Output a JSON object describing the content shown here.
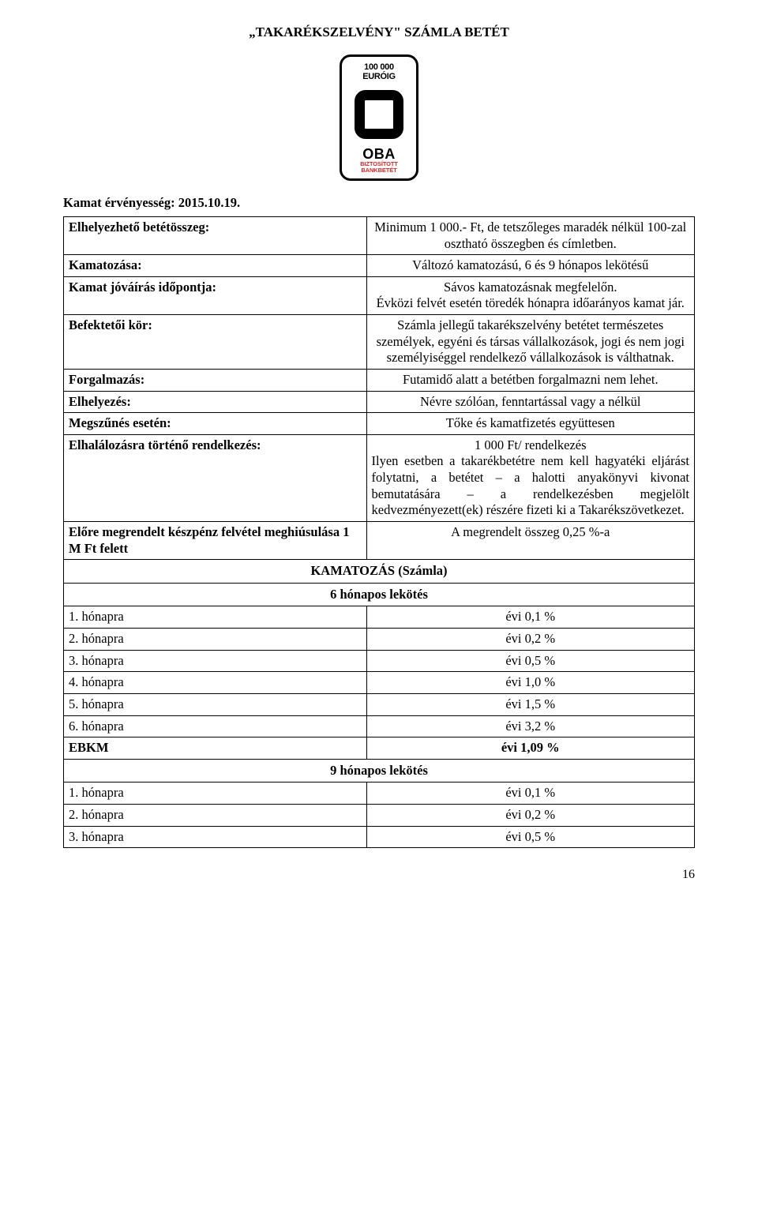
{
  "document_title": "„TAKARÉKSZELVÉNY\" SZÁMLA BETÉT",
  "logo": {
    "top_line1": "100 000",
    "top_line2": "EURÓIG",
    "brand": "OBA",
    "sub_line1": "BIZTOSÍTOTT",
    "sub_line2": "BANKBETÉT"
  },
  "validity_line": "Kamat érvényesség: 2015.10.19.",
  "info_rows": [
    {
      "label": "Elhelyezhető betétösszeg:",
      "value": "Minimum 1 000.- Ft, de tetszőleges maradék nélkül 100-zal osztható összegben és címletben.",
      "align": "center"
    },
    {
      "label": "Kamatozása:",
      "value": "Változó kamatozású, 6 és 9 hónapos lekötésű",
      "align": "center"
    },
    {
      "label": "Kamat jóváírás időpontja:",
      "value": "Sávos kamatozásnak megfelelőn.\nÉvközi felvét esetén töredék hónapra időarányos kamat jár.",
      "align": "center"
    },
    {
      "label": "Befektetői kör:",
      "value": "Számla jellegű takarékszelvény betétet természetes személyek, egyéni és társas vállalkozások, jogi és nem jogi személyiséggel rendelkező vállalkozások is válthatnak.",
      "align": "center"
    },
    {
      "label": "Forgalmazás:",
      "value": "Futamidő alatt a betétben forgalmazni nem lehet.",
      "align": "center"
    },
    {
      "label": "Elhelyezés:",
      "value": "Névre szólóan, fenntartással vagy a nélkül",
      "align": "center"
    },
    {
      "label": "Megszűnés esetén:",
      "value": "Tőke és kamatfizetés együttesen",
      "align": "center"
    },
    {
      "label": "Elhalálozásra történő rendelkezés:",
      "value": "1 000 Ft/ rendelkezés\nIlyen esetben a takarékbetétre nem kell hagyatéki eljárást folytatni, a betétet – a halotti anyakönyvi kivonat bemutatására – a rendelkezésben megjelölt kedvezményezett(ek) részére fizeti ki a Takarékszövetkezet.",
      "align": "mixed"
    },
    {
      "label": "Előre megrendelt készpénz felvétel meghiúsulása 1 M Ft felett",
      "value": "A megrendelt összeg 0,25 %-a",
      "align": "center"
    }
  ],
  "rate_section_title": "KAMATOZÁS (Számla)",
  "blocks": [
    {
      "heading": "6 hónapos lekötés",
      "rows": [
        {
          "label": "1. hónapra",
          "value": "évi 0,1 %"
        },
        {
          "label": "2. hónapra",
          "value": "évi 0,2 %"
        },
        {
          "label": "3. hónapra",
          "value": "évi 0,5 %"
        },
        {
          "label": "4. hónapra",
          "value": "évi 1,0 %"
        },
        {
          "label": "5. hónapra",
          "value": "évi 1,5 %"
        },
        {
          "label": "6. hónapra",
          "value": "évi 3,2 %"
        }
      ],
      "ebkm": {
        "label": "EBKM",
        "value": "évi  1,09 %"
      }
    },
    {
      "heading": "9 hónapos lekötés",
      "rows": [
        {
          "label": "1. hónapra",
          "value": "évi 0,1 %"
        },
        {
          "label": "2. hónapra",
          "value": "évi 0,2 %"
        },
        {
          "label": "3. hónapra",
          "value": "évi 0,5 %"
        }
      ]
    }
  ],
  "page_number": "16",
  "colors": {
    "text": "#000000",
    "background": "#ffffff",
    "logo_sub": "#cc2b2b"
  }
}
